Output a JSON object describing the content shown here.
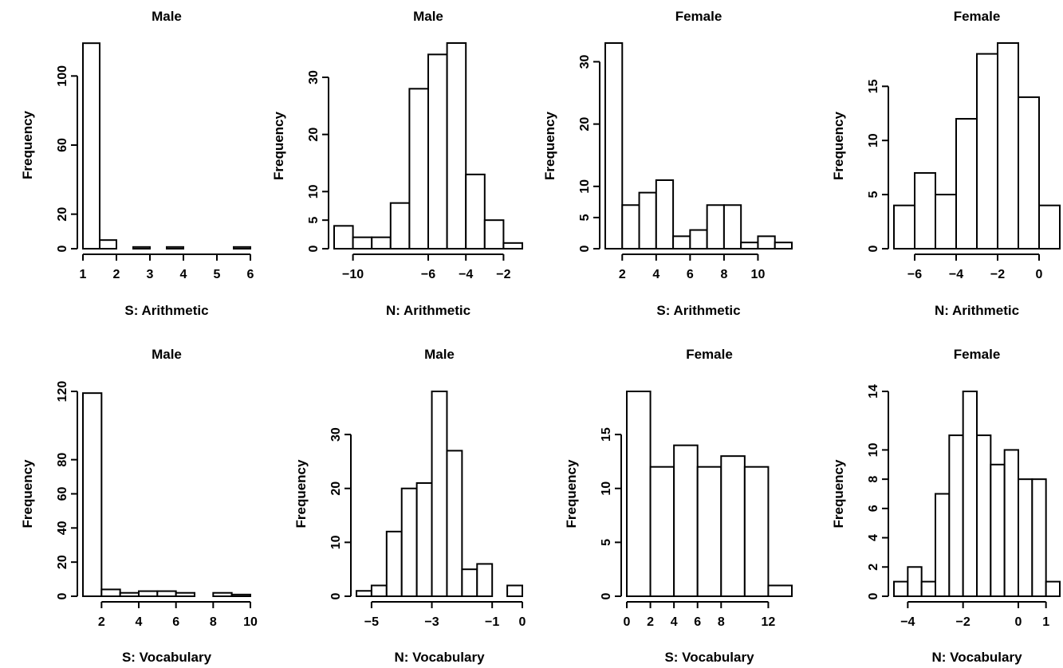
{
  "chart_data": [
    {
      "type": "bar",
      "title": "Male",
      "xlabel": "S: Arithmetic",
      "ylabel": "Frequency",
      "xlim": [
        1,
        6
      ],
      "ylim": [
        0,
        120
      ],
      "xticks": [
        1,
        2,
        3,
        4,
        5,
        6
      ],
      "xtick_labels": [
        "1",
        "2",
        "3",
        "4",
        "5",
        "6"
      ],
      "yticks": [
        0,
        20,
        60,
        100
      ],
      "ytick_labels": [
        "0",
        "20",
        "60",
        "100"
      ],
      "bins": [
        [
          1,
          1.5,
          119
        ],
        [
          1.5,
          2,
          5
        ],
        [
          2,
          2.5,
          0
        ],
        [
          2.5,
          3,
          1
        ],
        [
          3,
          3.5,
          0
        ],
        [
          3.5,
          4,
          1
        ],
        [
          4,
          4.5,
          0
        ],
        [
          4.5,
          5,
          0
        ],
        [
          5,
          5.5,
          0
        ],
        [
          5.5,
          6,
          1
        ]
      ]
    },
    {
      "type": "bar",
      "title": "Male",
      "xlabel": "N: Arithmetic",
      "ylabel": "Frequency",
      "xlim": [
        -11,
        -1
      ],
      "ylim": [
        0,
        36
      ],
      "xticks": [
        -10,
        -6,
        -4,
        -2
      ],
      "xtick_labels": [
        "−10",
        "−6",
        "−4",
        "−2"
      ],
      "yticks": [
        0,
        5,
        10,
        20,
        30
      ],
      "ytick_labels": [
        "0",
        "5",
        "10",
        "20",
        "30"
      ],
      "bins": [
        [
          -11,
          -10,
          4
        ],
        [
          -10,
          -9,
          2
        ],
        [
          -9,
          -8,
          2
        ],
        [
          -8,
          -7,
          8
        ],
        [
          -7,
          -6,
          28
        ],
        [
          -6,
          -5,
          34
        ],
        [
          -5,
          -4,
          36
        ],
        [
          -4,
          -3,
          13
        ],
        [
          -3,
          -2,
          5
        ],
        [
          -2,
          -1,
          1
        ]
      ]
    },
    {
      "type": "bar",
      "title": "Female",
      "xlabel": "S: Arithmetic",
      "ylabel": "Frequency",
      "xlim": [
        1,
        12
      ],
      "ylim": [
        0,
        33
      ],
      "xticks": [
        2,
        4,
        6,
        8,
        10
      ],
      "xtick_labels": [
        "2",
        "4",
        "6",
        "8",
        "10"
      ],
      "yticks": [
        0,
        5,
        10,
        20,
        30
      ],
      "ytick_labels": [
        "0",
        "5",
        "10",
        "20",
        "30"
      ],
      "bins": [
        [
          1,
          2,
          33
        ],
        [
          2,
          3,
          7
        ],
        [
          3,
          4,
          9
        ],
        [
          4,
          5,
          11
        ],
        [
          5,
          6,
          2
        ],
        [
          6,
          7,
          3
        ],
        [
          7,
          8,
          7
        ],
        [
          8,
          9,
          7
        ],
        [
          9,
          10,
          1
        ],
        [
          10,
          11,
          2
        ],
        [
          11,
          12,
          1
        ]
      ]
    },
    {
      "type": "bar",
      "title": "Female",
      "xlabel": "N: Arithmetic",
      "ylabel": "Frequency",
      "xlim": [
        -7,
        1
      ],
      "ylim": [
        0,
        19
      ],
      "xticks": [
        -6,
        -4,
        -2,
        0
      ],
      "xtick_labels": [
        "−6",
        "−4",
        "−2",
        "0"
      ],
      "yticks": [
        0,
        5,
        10,
        15
      ],
      "ytick_labels": [
        "0",
        "5",
        "10",
        "15"
      ],
      "bins": [
        [
          -7,
          -6,
          4
        ],
        [
          -6,
          -5,
          7
        ],
        [
          -5,
          -4,
          5
        ],
        [
          -4,
          -3,
          12
        ],
        [
          -3,
          -2,
          18
        ],
        [
          -2,
          -1,
          19
        ],
        [
          -1,
          0,
          14
        ],
        [
          0,
          1,
          4
        ]
      ]
    },
    {
      "type": "bar",
      "title": "Male",
      "xlabel": "S: Vocabulary",
      "ylabel": "Frequency",
      "xlim": [
        1,
        10
      ],
      "ylim": [
        0,
        120
      ],
      "xticks": [
        2,
        4,
        6,
        8,
        10
      ],
      "xtick_labels": [
        "2",
        "4",
        "6",
        "8",
        "10"
      ],
      "yticks": [
        0,
        20,
        40,
        60,
        80,
        120
      ],
      "ytick_labels": [
        "0",
        "20",
        "40",
        "60",
        "80",
        "120"
      ],
      "bins": [
        [
          1,
          2,
          119
        ],
        [
          2,
          3,
          4
        ],
        [
          3,
          4,
          2
        ],
        [
          4,
          5,
          3
        ],
        [
          5,
          6,
          3
        ],
        [
          6,
          7,
          2
        ],
        [
          7,
          8,
          0
        ],
        [
          8,
          9,
          2
        ],
        [
          9,
          10,
          1
        ]
      ]
    },
    {
      "type": "bar",
      "title": "Male",
      "xlabel": "N: Vocabulary",
      "ylabel": "Frequency",
      "xlim": [
        -5.5,
        0
      ],
      "ylim": [
        0,
        38
      ],
      "xticks": [
        -5,
        -3,
        -1,
        0
      ],
      "xtick_labels": [
        "−5",
        "−3",
        "−1",
        "0"
      ],
      "yticks": [
        0,
        10,
        20,
        30
      ],
      "ytick_labels": [
        "0",
        "10",
        "20",
        "30"
      ],
      "bins": [
        [
          -5.5,
          -5,
          1
        ],
        [
          -5,
          -4.5,
          2
        ],
        [
          -4.5,
          -4,
          12
        ],
        [
          -4,
          -3.5,
          20
        ],
        [
          -3.5,
          -3,
          21
        ],
        [
          -3,
          -2.5,
          38
        ],
        [
          -2.5,
          -2,
          27
        ],
        [
          -2,
          -1.5,
          5
        ],
        [
          -1.5,
          -1,
          6
        ],
        [
          -1,
          -0.5,
          0
        ],
        [
          -0.5,
          0,
          2
        ]
      ]
    },
    {
      "type": "bar",
      "title": "Female",
      "xlabel": "S: Vocabulary",
      "ylabel": "Frequency",
      "xlim": [
        0,
        14
      ],
      "ylim": [
        0,
        19
      ],
      "xticks": [
        0,
        2,
        4,
        6,
        8,
        12
      ],
      "xtick_labels": [
        "0",
        "2",
        "4",
        "6",
        "8",
        "12"
      ],
      "yticks": [
        0,
        5,
        10,
        15
      ],
      "ytick_labels": [
        "0",
        "5",
        "10",
        "15"
      ],
      "bins": [
        [
          0,
          2,
          19
        ],
        [
          2,
          4,
          12
        ],
        [
          4,
          6,
          14
        ],
        [
          6,
          8,
          12
        ],
        [
          8,
          10,
          13
        ],
        [
          10,
          12,
          12
        ],
        [
          12,
          14,
          1
        ]
      ]
    },
    {
      "type": "bar",
      "title": "Female",
      "xlabel": "N: Vocabulary",
      "ylabel": "Frequency",
      "xlim": [
        -4.5,
        1.5
      ],
      "ylim": [
        0,
        14
      ],
      "xticks": [
        -4,
        -2,
        0,
        1
      ],
      "xtick_labels": [
        "−4",
        "−2",
        "0",
        "1"
      ],
      "yticks": [
        0,
        2,
        4,
        6,
        8,
        10,
        14
      ],
      "ytick_labels": [
        "0",
        "2",
        "4",
        "6",
        "8",
        "10",
        "14"
      ],
      "bins": [
        [
          -4.5,
          -4,
          1
        ],
        [
          -4,
          -3.5,
          2
        ],
        [
          -3.5,
          -3,
          1
        ],
        [
          -3,
          -2.5,
          7
        ],
        [
          -2.5,
          -2,
          11
        ],
        [
          -2,
          -1.5,
          14
        ],
        [
          -1.5,
          -1,
          11
        ],
        [
          -1,
          -0.5,
          9
        ],
        [
          -0.5,
          0,
          10
        ],
        [
          0,
          0.5,
          8
        ],
        [
          0.5,
          1,
          8
        ],
        [
          1,
          1.5,
          1
        ]
      ]
    }
  ]
}
